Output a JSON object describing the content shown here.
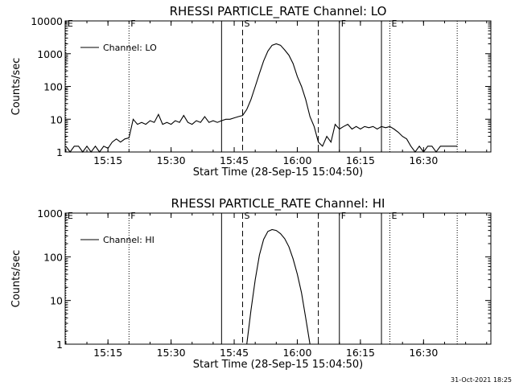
{
  "timestamp": "31-Oct-2021 18:25",
  "colors": {
    "line": "#000000",
    "background": "#ffffff"
  },
  "chart_data": [
    {
      "type": "line",
      "title": "RHESSI PARTICLE_RATE Channel: LO",
      "xlabel": "Start Time (28-Sep-15 15:04:50)",
      "ylabel": "Counts/sec",
      "yscale": "log",
      "ylim": [
        1,
        10000
      ],
      "xlim": [
        "15:04:50",
        "16:46:00"
      ],
      "x_ticks": [
        "15:15",
        "15:30",
        "15:45",
        "16:00",
        "16:15",
        "16:30"
      ],
      "y_ticks": [
        {
          "value": 1,
          "label": "1"
        },
        {
          "value": 10,
          "label": "10"
        },
        {
          "value": 100,
          "label": "100"
        },
        {
          "value": 1000,
          "label": "1000"
        },
        {
          "value": 10000,
          "label": "10000"
        }
      ],
      "legend": {
        "position": "top-left",
        "entries": [
          "Channel: LO"
        ]
      },
      "markers": [
        {
          "time": "15:05",
          "label": "E",
          "style": "dotted"
        },
        {
          "time": "15:20",
          "label": "F",
          "style": "dotted"
        },
        {
          "time": "15:42",
          "label": "",
          "style": "solid"
        },
        {
          "time": "15:47",
          "label": "S",
          "style": "dashed"
        },
        {
          "time": "16:05",
          "label": "",
          "style": "dashed"
        },
        {
          "time": "16:10",
          "label": "F",
          "style": "solid"
        },
        {
          "time": "16:20",
          "label": "",
          "style": "solid"
        },
        {
          "time": "16:22",
          "label": "E",
          "style": "dotted"
        },
        {
          "time": "16:38",
          "label": "",
          "style": "dotted"
        }
      ],
      "series": [
        {
          "name": "Channel: LO",
          "x": [
            "15:05",
            "15:06",
            "15:07",
            "15:08",
            "15:09",
            "15:10",
            "15:11",
            "15:12",
            "15:13",
            "15:14",
            "15:15",
            "15:16",
            "15:17",
            "15:18",
            "15:19",
            "15:20",
            "15:21",
            "15:22",
            "15:23",
            "15:24",
            "15:25",
            "15:26",
            "15:27",
            "15:28",
            "15:29",
            "15:30",
            "15:31",
            "15:32",
            "15:33",
            "15:34",
            "15:35",
            "15:36",
            "15:37",
            "15:38",
            "15:39",
            "15:40",
            "15:41",
            "15:42",
            "15:43",
            "15:44",
            "15:45",
            "15:46",
            "15:47",
            "15:48",
            "15:49",
            "15:50",
            "15:51",
            "15:52",
            "15:53",
            "15:54",
            "15:55",
            "15:56",
            "15:57",
            "15:58",
            "15:59",
            "16:00",
            "16:01",
            "16:02",
            "16:03",
            "16:04",
            "16:05",
            "16:06",
            "16:07",
            "16:08",
            "16:09",
            "16:10",
            "16:11",
            "16:12",
            "16:13",
            "16:14",
            "16:15",
            "16:16",
            "16:17",
            "16:18",
            "16:19",
            "16:20",
            "16:21",
            "16:22",
            "16:23",
            "16:24",
            "16:25",
            "16:26",
            "16:27",
            "16:28",
            "16:29",
            "16:30",
            "16:31",
            "16:32",
            "16:33",
            "16:34",
            "16:35",
            "16:36",
            "16:37",
            "16:38"
          ],
          "y": [
            1.5,
            1,
            1.5,
            1.5,
            1,
            1.5,
            1,
            1.5,
            1,
            1.5,
            1.3,
            2,
            2.5,
            2,
            2.5,
            2.7,
            10,
            7,
            8,
            7,
            9,
            8,
            14,
            7,
            8,
            7,
            9,
            8,
            13,
            8,
            7,
            9,
            8,
            12,
            8,
            9,
            8,
            9,
            10,
            10,
            11,
            12,
            13,
            20,
            40,
            100,
            250,
            600,
            1200,
            1800,
            2000,
            1800,
            1300,
            900,
            500,
            200,
            100,
            40,
            12,
            6,
            2,
            1.5,
            3,
            2,
            7,
            5,
            6,
            7,
            5,
            6,
            5,
            6,
            5.5,
            6,
            5,
            6,
            5.5,
            6,
            5,
            4,
            3,
            2.5,
            1.5,
            1,
            1.5,
            1,
            1.5,
            1.5,
            1,
            1.5,
            1.5,
            1.5,
            1.5,
            1.5
          ]
        }
      ]
    },
    {
      "type": "line",
      "title": "RHESSI PARTICLE_RATE Channel: HI",
      "xlabel": "Start Time (28-Sep-15 15:04:50)",
      "ylabel": "Counts/sec",
      "yscale": "log",
      "ylim": [
        1,
        1000
      ],
      "xlim": [
        "15:04:50",
        "16:46:00"
      ],
      "x_ticks": [
        "15:15",
        "15:30",
        "15:45",
        "16:00",
        "16:15",
        "16:30"
      ],
      "y_ticks": [
        {
          "value": 1,
          "label": "1"
        },
        {
          "value": 10,
          "label": "10"
        },
        {
          "value": 100,
          "label": "100"
        },
        {
          "value": 1000,
          "label": "1000"
        }
      ],
      "legend": {
        "position": "top-left",
        "entries": [
          "Channel: HI"
        ]
      },
      "markers": [
        {
          "time": "15:05",
          "label": "E",
          "style": "dotted"
        },
        {
          "time": "15:20",
          "label": "F",
          "style": "dotted"
        },
        {
          "time": "15:42",
          "label": "",
          "style": "solid"
        },
        {
          "time": "15:47",
          "label": "S",
          "style": "dashed"
        },
        {
          "time": "16:05",
          "label": "",
          "style": "dashed"
        },
        {
          "time": "16:10",
          "label": "F",
          "style": "solid"
        },
        {
          "time": "16:20",
          "label": "",
          "style": "solid"
        },
        {
          "time": "16:22",
          "label": "E",
          "style": "dotted"
        },
        {
          "time": "16:38",
          "label": "",
          "style": "dotted"
        }
      ],
      "series": [
        {
          "name": "Channel: HI",
          "x": [
            "15:48",
            "15:49",
            "15:50",
            "15:51",
            "15:52",
            "15:53",
            "15:54",
            "15:55",
            "15:56",
            "15:57",
            "15:58",
            "15:59",
            "16:00",
            "16:01",
            "16:02",
            "16:03"
          ],
          "y": [
            1,
            6,
            30,
            110,
            250,
            380,
            420,
            400,
            340,
            260,
            170,
            90,
            40,
            15,
            4,
            1
          ]
        }
      ]
    }
  ]
}
